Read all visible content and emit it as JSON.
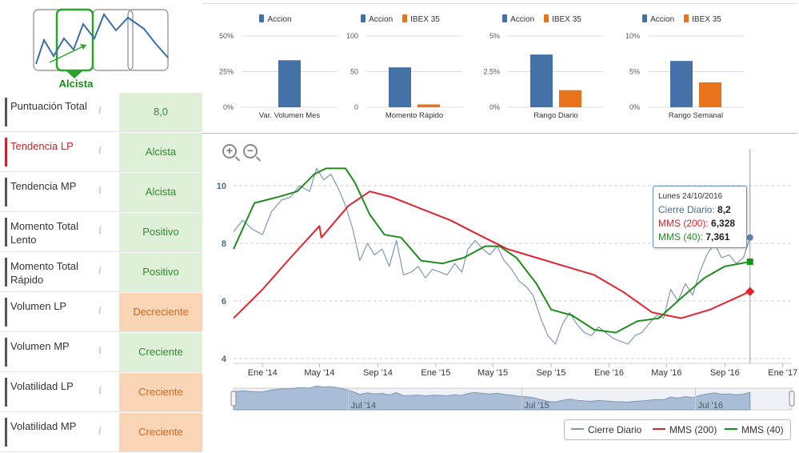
{
  "colors": {
    "accion": "#4472a8",
    "ibex": "#e8731a",
    "cierre": "#7f97b1",
    "mms200": "#e0242f",
    "mms40": "#1f8c1f",
    "green_bg": "#dff0d8",
    "orange_bg": "#fad5b5"
  },
  "trend": {
    "label": "Alcista"
  },
  "metrics": [
    {
      "label": "Puntuación Total",
      "value": "8,0",
      "tone": "green",
      "bar": "#555555"
    },
    {
      "label": "Tendencia LP",
      "value": "Alcista",
      "tone": "green",
      "bar": "#c0262e",
      "label_color": "#c0262e"
    },
    {
      "label": "Tendencia MP",
      "value": "Alcista",
      "tone": "green",
      "bar": "#555555"
    },
    {
      "label": "Momento Total Lento",
      "value": "Positivo",
      "tone": "green",
      "bar": "#555555"
    },
    {
      "label": "Momento Total Rápido",
      "value": "Positivo",
      "tone": "green",
      "bar": "#555555"
    },
    {
      "label": "Volumen LP",
      "value": "Decreciente",
      "tone": "orange",
      "bar": "#555555"
    },
    {
      "label": "Volumen MP",
      "value": "Creciente",
      "tone": "green",
      "bar": "#555555"
    },
    {
      "label": "Volatilidad LP",
      "value": "Creciente",
      "tone": "orange",
      "bar": "#555555"
    },
    {
      "label": "Volatilidad MP",
      "value": "Creciente",
      "tone": "orange",
      "bar": "#555555"
    }
  ],
  "info_glyph": "i",
  "chart_data": [
    {
      "type": "bar",
      "xlabel": "Var. Volumen Mes",
      "legend": [
        "Accion"
      ],
      "yticks": [
        "0%",
        "25%",
        "50%"
      ],
      "ylim": [
        0,
        50
      ],
      "series": [
        {
          "name": "Accion",
          "values": [
            33
          ]
        }
      ]
    },
    {
      "type": "bar",
      "xlabel": "Momento Rápido",
      "legend": [
        "Accion",
        "IBEX 35"
      ],
      "yticks": [
        "0",
        "50",
        "100"
      ],
      "ylim": [
        0,
        100
      ],
      "series": [
        {
          "name": "Accion",
          "values": [
            56
          ]
        },
        {
          "name": "IBEX 35",
          "values": [
            4
          ]
        }
      ]
    },
    {
      "type": "bar",
      "xlabel": "Rango Diario",
      "legend": [
        "Accion",
        "IBEX 35"
      ],
      "yticks": [
        "0%",
        "2.5%",
        "5%"
      ],
      "ylim": [
        0,
        5
      ],
      "series": [
        {
          "name": "Accion",
          "values": [
            3.7
          ]
        },
        {
          "name": "IBEX 35",
          "values": [
            1.2
          ]
        }
      ]
    },
    {
      "type": "bar",
      "xlabel": "Rango Semanal",
      "legend": [
        "Accion",
        "IBEX 35"
      ],
      "yticks": [
        "0%",
        "5%",
        "10%"
      ],
      "ylim": [
        0,
        10
      ],
      "series": [
        {
          "name": "Accion",
          "values": [
            6.5
          ]
        },
        {
          "name": "IBEX 35",
          "values": [
            3.5
          ]
        }
      ]
    },
    {
      "type": "line",
      "ylim": [
        4,
        11
      ],
      "yticks": [
        4,
        6,
        8,
        10
      ],
      "xlim": [
        "2013-11-01",
        "2017-01-20"
      ],
      "xticks": [
        {
          "date": "2014-01-01",
          "label": "Ene '14"
        },
        {
          "date": "2014-05-01",
          "label": "May '14"
        },
        {
          "date": "2014-09-01",
          "label": "Sep '14"
        },
        {
          "date": "2015-01-01",
          "label": "Ene '15"
        },
        {
          "date": "2015-05-01",
          "label": "May '15"
        },
        {
          "date": "2015-09-01",
          "label": "Sep '15"
        },
        {
          "date": "2016-01-01",
          "label": "Ene '16"
        },
        {
          "date": "2016-05-01",
          "label": "May '16"
        },
        {
          "date": "2016-09-01",
          "label": "Sep '16"
        },
        {
          "date": "2017-01-01",
          "label": "Ene '17"
        }
      ],
      "navigator_labels": [
        "Jul '14",
        "Jul '15",
        "Jul '16"
      ],
      "series": [
        {
          "name": "Cierre Diario",
          "points": [
            [
              "2013-11-01",
              8.4
            ],
            [
              "2013-11-20",
              8.8
            ],
            [
              "2013-12-10",
              8.5
            ],
            [
              "2014-01-01",
              8.3
            ],
            [
              "2014-01-20",
              9.1
            ],
            [
              "2014-02-10",
              9.5
            ],
            [
              "2014-03-01",
              9.6
            ],
            [
              "2014-03-20",
              10.0
            ],
            [
              "2014-04-10",
              9.8
            ],
            [
              "2014-04-25",
              10.6
            ],
            [
              "2014-05-10",
              10.2
            ],
            [
              "2014-05-25",
              10.4
            ],
            [
              "2014-06-10",
              9.9
            ],
            [
              "2014-06-25",
              9.3
            ],
            [
              "2014-07-10",
              8.5
            ],
            [
              "2014-07-25",
              7.4
            ],
            [
              "2014-08-10",
              8.0
            ],
            [
              "2014-08-25",
              7.6
            ],
            [
              "2014-09-10",
              7.8
            ],
            [
              "2014-09-25",
              7.2
            ],
            [
              "2014-10-10",
              8.1
            ],
            [
              "2014-10-25",
              6.9
            ],
            [
              "2014-11-10",
              7.0
            ],
            [
              "2014-11-25",
              7.2
            ],
            [
              "2014-12-10",
              6.8
            ],
            [
              "2014-12-25",
              7.1
            ],
            [
              "2015-01-10",
              7.0
            ],
            [
              "2015-01-25",
              6.9
            ],
            [
              "2015-02-10",
              7.3
            ],
            [
              "2015-02-25",
              7.0
            ],
            [
              "2015-03-10",
              7.8
            ],
            [
              "2015-03-25",
              8.1
            ],
            [
              "2015-04-10",
              7.8
            ],
            [
              "2015-04-25",
              7.6
            ],
            [
              "2015-05-10",
              7.9
            ],
            [
              "2015-05-25",
              7.4
            ],
            [
              "2015-06-10",
              7.1
            ],
            [
              "2015-06-25",
              6.7
            ],
            [
              "2015-07-10",
              6.5
            ],
            [
              "2015-07-25",
              6.2
            ],
            [
              "2015-08-10",
              5.4
            ],
            [
              "2015-08-25",
              4.8
            ],
            [
              "2015-09-10",
              4.5
            ],
            [
              "2015-09-25",
              5.2
            ],
            [
              "2015-10-10",
              5.6
            ],
            [
              "2015-10-25",
              5.2
            ],
            [
              "2015-11-10",
              4.9
            ],
            [
              "2015-11-25",
              4.8
            ],
            [
              "2015-12-10",
              5.1
            ],
            [
              "2015-12-25",
              4.9
            ],
            [
              "2016-01-10",
              4.7
            ],
            [
              "2016-01-25",
              4.6
            ],
            [
              "2016-02-10",
              4.5
            ],
            [
              "2016-02-25",
              4.8
            ],
            [
              "2016-03-10",
              4.9
            ],
            [
              "2016-03-25",
              5.2
            ],
            [
              "2016-04-10",
              5.5
            ],
            [
              "2016-04-25",
              5.4
            ],
            [
              "2016-05-10",
              6.4
            ],
            [
              "2016-05-25",
              6.0
            ],
            [
              "2016-06-10",
              6.6
            ],
            [
              "2016-06-25",
              6.2
            ],
            [
              "2016-07-10",
              7.0
            ],
            [
              "2016-07-25",
              7.6
            ],
            [
              "2016-08-10",
              8.0
            ],
            [
              "2016-08-25",
              7.5
            ],
            [
              "2016-09-10",
              7.6
            ],
            [
              "2016-09-25",
              7.3
            ],
            [
              "2016-10-10",
              7.5
            ],
            [
              "2016-10-24",
              8.2
            ]
          ]
        },
        {
          "name": "MMS (200)",
          "points": [
            [
              "2013-11-01",
              5.4
            ],
            [
              "2014-01-01",
              6.4
            ],
            [
              "2014-03-01",
              7.5
            ],
            [
              "2014-05-01",
              8.6
            ],
            [
              "2014-05-05",
              8.2
            ],
            [
              "2014-07-01",
              9.3
            ],
            [
              "2014-08-15",
              9.8
            ],
            [
              "2014-10-01",
              9.6
            ],
            [
              "2014-12-01",
              9.2
            ],
            [
              "2015-02-01",
              8.8
            ],
            [
              "2015-04-01",
              8.3
            ],
            [
              "2015-06-01",
              7.8
            ],
            [
              "2015-08-01",
              7.5
            ],
            [
              "2015-10-01",
              7.2
            ],
            [
              "2015-12-01",
              6.9
            ],
            [
              "2016-02-01",
              6.3
            ],
            [
              "2016-04-01",
              5.6
            ],
            [
              "2016-06-01",
              5.4
            ],
            [
              "2016-08-01",
              5.7
            ],
            [
              "2016-10-24",
              6.328
            ]
          ]
        },
        {
          "name": "MMS (40)",
          "points": [
            [
              "2013-11-01",
              7.8
            ],
            [
              "2013-12-15",
              9.4
            ],
            [
              "2014-02-01",
              9.6
            ],
            [
              "2014-03-15",
              9.8
            ],
            [
              "2014-04-20",
              10.4
            ],
            [
              "2014-05-15",
              10.6
            ],
            [
              "2014-06-25",
              10.6
            ],
            [
              "2014-07-15",
              10.1
            ],
            [
              "2014-08-15",
              9.0
            ],
            [
              "2014-09-15",
              8.3
            ],
            [
              "2014-10-20",
              8.2
            ],
            [
              "2014-12-01",
              7.4
            ],
            [
              "2015-01-15",
              7.3
            ],
            [
              "2015-03-01",
              7.5
            ],
            [
              "2015-04-15",
              7.9
            ],
            [
              "2015-05-15",
              7.9
            ],
            [
              "2015-06-20",
              7.5
            ],
            [
              "2015-08-01",
              6.6
            ],
            [
              "2015-09-01",
              5.7
            ],
            [
              "2015-10-15",
              5.5
            ],
            [
              "2015-12-01",
              5.0
            ],
            [
              "2016-01-15",
              4.9
            ],
            [
              "2016-03-01",
              5.3
            ],
            [
              "2016-04-15",
              5.4
            ],
            [
              "2016-06-01",
              6.1
            ],
            [
              "2016-07-20",
              6.8
            ],
            [
              "2016-09-01",
              7.2
            ],
            [
              "2016-10-24",
              7.361
            ]
          ]
        }
      ]
    }
  ],
  "tooltip": {
    "date": "Lunes 24/10/2016",
    "cierre_label": "Cierre Diario:",
    "cierre_value": "8,2",
    "mms200_label": "MMS (200):",
    "mms200_value": "6,328",
    "mms40_label": "MMS (40):",
    "mms40_value": "7,361"
  },
  "legend": {
    "cierre": "Cierre Diario",
    "mms200": "MMS (200)",
    "mms40": "MMS (40)"
  },
  "zoom": {
    "in": "+",
    "out": "−"
  }
}
